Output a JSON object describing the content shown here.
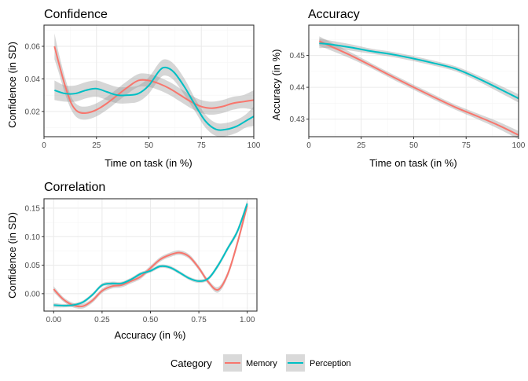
{
  "chart_data": [
    {
      "type": "line",
      "title": "Confidence",
      "xlabel": "Time on task (in %)",
      "ylabel": "Confidence (in SD)",
      "xlim": [
        0,
        100
      ],
      "ylim": [
        0.0045,
        0.073
      ],
      "xticks": [
        0,
        25,
        50,
        75,
        100
      ],
      "xtick_labels": [
        "0",
        "25",
        "50",
        "75",
        "100"
      ],
      "yticks": [
        0.02,
        0.04,
        0.06
      ],
      "ytick_labels": [
        "0.02",
        "0.04",
        "0.06"
      ],
      "grid": true,
      "series": [
        {
          "name": "Memory",
          "x": [
            5,
            7,
            10,
            13,
            16,
            20,
            25,
            30,
            35,
            40,
            45,
            50,
            55,
            60,
            65,
            70,
            75,
            80,
            85,
            90,
            95,
            100
          ],
          "y": [
            0.06,
            0.05,
            0.036,
            0.025,
            0.02,
            0.019,
            0.021,
            0.025,
            0.03,
            0.035,
            0.039,
            0.039,
            0.037,
            0.034,
            0.03,
            0.026,
            0.023,
            0.022,
            0.023,
            0.025,
            0.026,
            0.027
          ],
          "band": [
            0.008,
            0.006,
            0.005,
            0.004,
            0.004,
            0.004,
            0.004,
            0.004,
            0.004,
            0.004,
            0.004,
            0.004,
            0.004,
            0.004,
            0.004,
            0.004,
            0.004,
            0.004,
            0.004,
            0.004,
            0.004,
            0.006
          ]
        },
        {
          "name": "Perception",
          "x": [
            5,
            10,
            15,
            20,
            25,
            30,
            35,
            40,
            45,
            50,
            55,
            58,
            62,
            67,
            72,
            77,
            82,
            87,
            92,
            96,
            100
          ],
          "y": [
            0.033,
            0.031,
            0.031,
            0.033,
            0.034,
            0.032,
            0.03,
            0.03,
            0.031,
            0.036,
            0.045,
            0.047,
            0.044,
            0.035,
            0.024,
            0.014,
            0.009,
            0.009,
            0.011,
            0.014,
            0.017
          ],
          "band": [
            0.006,
            0.005,
            0.005,
            0.005,
            0.005,
            0.005,
            0.005,
            0.005,
            0.005,
            0.005,
            0.005,
            0.005,
            0.005,
            0.005,
            0.004,
            0.004,
            0.004,
            0.004,
            0.004,
            0.004,
            0.006
          ]
        }
      ]
    },
    {
      "type": "line",
      "title": "Accuracy",
      "xlabel": "Time on task (in %)",
      "ylabel": "Accuracy (in %)",
      "xlim": [
        0,
        100
      ],
      "ylim": [
        0.4245,
        0.4595
      ],
      "xticks": [
        0,
        25,
        50,
        75,
        100
      ],
      "xtick_labels": [
        "0",
        "25",
        "50",
        "75",
        "100"
      ],
      "yticks": [
        0.43,
        0.44,
        0.45
      ],
      "ytick_labels": [
        "0.43",
        "0.44",
        "0.45"
      ],
      "grid": true,
      "series": [
        {
          "name": "Memory",
          "x": [
            5,
            10,
            20,
            30,
            40,
            50,
            60,
            70,
            80,
            90,
            100
          ],
          "y": [
            0.4545,
            0.453,
            0.45,
            0.4467,
            0.4433,
            0.44,
            0.4368,
            0.4337,
            0.431,
            0.4282,
            0.425
          ],
          "band": [
            0.0015,
            0.0013,
            0.001,
            0.0008,
            0.0008,
            0.0008,
            0.0008,
            0.0008,
            0.0009,
            0.0011,
            0.0013
          ]
        },
        {
          "name": "Perception",
          "x": [
            5,
            10,
            20,
            30,
            40,
            50,
            60,
            70,
            80,
            90,
            100
          ],
          "y": [
            0.4538,
            0.4535,
            0.4525,
            0.4513,
            0.4503,
            0.449,
            0.4475,
            0.4458,
            0.443,
            0.4398,
            0.4365
          ],
          "band": [
            0.0015,
            0.0012,
            0.001,
            0.0008,
            0.0008,
            0.0008,
            0.0008,
            0.0008,
            0.0009,
            0.0011,
            0.0013
          ]
        }
      ]
    },
    {
      "type": "line",
      "title": "Correlation",
      "xlabel": "Accuracy (in %)",
      "ylabel": "Confidence (in SD)",
      "xlim": [
        -0.05,
        1.05
      ],
      "ylim": [
        -0.0305,
        0.1665
      ],
      "xticks": [
        0,
        0.25,
        0.5,
        0.75,
        1
      ],
      "xtick_labels": [
        "0.00",
        "0.25",
        "0.50",
        "0.75",
        "1.00"
      ],
      "yticks": [
        0.0,
        0.05,
        0.1,
        0.15
      ],
      "ytick_labels": [
        "0.00",
        "0.05",
        "0.10",
        "0.15"
      ],
      "grid": true,
      "series": [
        {
          "name": "Memory",
          "x": [
            0.0,
            0.05,
            0.1,
            0.15,
            0.2,
            0.25,
            0.3,
            0.35,
            0.4,
            0.45,
            0.5,
            0.55,
            0.6,
            0.65,
            0.7,
            0.75,
            0.8,
            0.85,
            0.9,
            0.95,
            1.0
          ],
          "y": [
            0.008,
            -0.01,
            -0.02,
            -0.022,
            -0.012,
            0.005,
            0.013,
            0.015,
            0.022,
            0.03,
            0.045,
            0.06,
            0.068,
            0.072,
            0.065,
            0.045,
            0.02,
            0.007,
            0.035,
            0.09,
            0.155
          ],
          "band": [
            0.005,
            0.004,
            0.004,
            0.004,
            0.004,
            0.004,
            0.004,
            0.004,
            0.004,
            0.004,
            0.004,
            0.004,
            0.004,
            0.004,
            0.004,
            0.004,
            0.004,
            0.005,
            0.005,
            0.006,
            0.007
          ]
        },
        {
          "name": "Perception",
          "x": [
            0.0,
            0.05,
            0.1,
            0.15,
            0.2,
            0.25,
            0.3,
            0.35,
            0.4,
            0.45,
            0.5,
            0.55,
            0.6,
            0.65,
            0.7,
            0.75,
            0.8,
            0.85,
            0.9,
            0.95,
            1.0
          ],
          "y": [
            -0.02,
            -0.021,
            -0.02,
            -0.015,
            -0.002,
            0.015,
            0.018,
            0.018,
            0.025,
            0.035,
            0.04,
            0.048,
            0.046,
            0.037,
            0.027,
            0.022,
            0.027,
            0.05,
            0.08,
            0.11,
            0.158
          ],
          "band": [
            0.004,
            0.003,
            0.003,
            0.003,
            0.003,
            0.003,
            0.003,
            0.003,
            0.003,
            0.003,
            0.003,
            0.003,
            0.003,
            0.003,
            0.003,
            0.003,
            0.003,
            0.004,
            0.004,
            0.005,
            0.006
          ]
        }
      ]
    }
  ],
  "legend": {
    "title": "Category",
    "position": "bottom",
    "items": [
      {
        "label": "Memory",
        "color": "#F8766D"
      },
      {
        "label": "Perception",
        "color": "#00BFC4"
      }
    ]
  },
  "colors": {
    "Memory": "#F8766D",
    "Perception": "#00BFC4",
    "band": "#999999",
    "grid_major": "#ebebeb",
    "grid_minor": "#f5f5f5",
    "border": "#333333",
    "tick_text": "#4d4d4d"
  }
}
